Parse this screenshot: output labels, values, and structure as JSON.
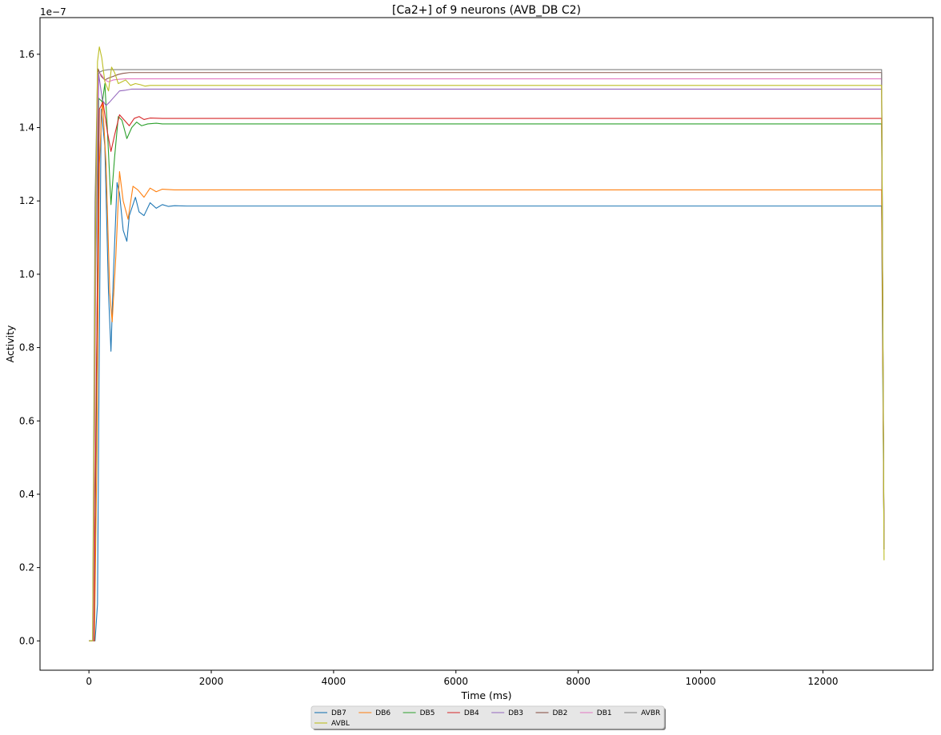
{
  "chart_data": {
    "type": "line",
    "title": "[Ca2+] of 9 neurons (AVB_DB C2)",
    "xlabel": "Time (ms)",
    "ylabel": "Activity",
    "y_offset_label": "1e−7",
    "xlim": [
      -800,
      13800
    ],
    "ylim": [
      -0.08,
      1.7
    ],
    "x_ticks": [
      0,
      2000,
      4000,
      6000,
      8000,
      10000,
      12000
    ],
    "x_tick_labels": [
      "0",
      "2000",
      "4000",
      "6000",
      "8000",
      "10000",
      "12000"
    ],
    "y_ticks": [
      0.0,
      0.2,
      0.4,
      0.6,
      0.8,
      1.0,
      1.2,
      1.4,
      1.6
    ],
    "y_tick_labels": [
      "0.0",
      "0.2",
      "0.4",
      "0.6",
      "0.8",
      "1.0",
      "1.2",
      "1.4",
      "1.6"
    ],
    "grid": false,
    "legend_position": "bottom-center, below axes",
    "series": [
      {
        "name": "DB7",
        "color": "#1f77b4",
        "x": [
          0,
          100,
          140,
          160,
          200,
          260,
          320,
          360,
          400,
          460,
          500,
          560,
          620,
          660,
          760,
          820,
          900,
          1000,
          1100,
          1200,
          1300,
          1400,
          1600,
          12960,
          12980,
          13000
        ],
        "y": [
          0.0,
          0.0,
          0.1,
          0.6,
          1.45,
          1.35,
          0.95,
          0.79,
          1.0,
          1.25,
          1.22,
          1.12,
          1.09,
          1.16,
          1.21,
          1.17,
          1.16,
          1.195,
          1.18,
          1.19,
          1.185,
          1.187,
          1.186,
          1.186,
          0.7,
          0.25
        ]
      },
      {
        "name": "DB6",
        "color": "#ff7f0e",
        "x": [
          0,
          90,
          130,
          170,
          220,
          280,
          340,
          380,
          440,
          500,
          560,
          640,
          720,
          800,
          900,
          1000,
          1100,
          1200,
          1400,
          12960,
          12980,
          13000
        ],
        "y": [
          0.0,
          0.0,
          0.5,
          1.3,
          1.48,
          1.3,
          0.95,
          0.87,
          1.05,
          1.28,
          1.2,
          1.15,
          1.24,
          1.23,
          1.21,
          1.235,
          1.225,
          1.232,
          1.23,
          1.23,
          0.75,
          0.25
        ]
      },
      {
        "name": "DB5",
        "color": "#2ca02c",
        "x": [
          0,
          80,
          120,
          160,
          220,
          260,
          300,
          360,
          420,
          480,
          540,
          620,
          700,
          780,
          860,
          960,
          1100,
          1200,
          12960,
          12980,
          13000
        ],
        "y": [
          0.0,
          0.0,
          0.6,
          1.48,
          1.47,
          1.52,
          1.4,
          1.19,
          1.32,
          1.43,
          1.42,
          1.37,
          1.4,
          1.415,
          1.405,
          1.41,
          1.412,
          1.41,
          1.41,
          0.8,
          0.25
        ]
      },
      {
        "name": "DB4",
        "color": "#d62728",
        "x": [
          0,
          80,
          120,
          170,
          230,
          300,
          360,
          420,
          500,
          580,
          660,
          740,
          820,
          900,
          1000,
          1200,
          12960,
          12980,
          13000
        ],
        "y": [
          0.0,
          0.0,
          0.7,
          1.45,
          1.47,
          1.39,
          1.335,
          1.38,
          1.435,
          1.42,
          1.405,
          1.425,
          1.43,
          1.422,
          1.426,
          1.425,
          1.425,
          0.8,
          0.25
        ]
      },
      {
        "name": "DB3",
        "color": "#9467bd",
        "x": [
          0,
          70,
          110,
          160,
          220,
          280,
          340,
          420,
          500,
          600,
          700,
          800,
          1000,
          12960,
          12980,
          13000
        ],
        "y": [
          0.0,
          0.0,
          1.0,
          1.545,
          1.475,
          1.46,
          1.47,
          1.485,
          1.5,
          1.502,
          1.505,
          1.505,
          1.505,
          1.505,
          0.85,
          0.25
        ]
      },
      {
        "name": "DB2",
        "color": "#8c564b",
        "x": [
          0,
          70,
          110,
          150,
          200,
          260,
          320,
          400,
          480,
          560,
          660,
          760,
          900,
          12960,
          12980,
          13000
        ],
        "y": [
          0.0,
          0.0,
          1.1,
          1.56,
          1.54,
          1.53,
          1.535,
          1.54,
          1.545,
          1.548,
          1.55,
          1.55,
          1.55,
          1.55,
          0.85,
          0.25
        ]
      },
      {
        "name": "DB1",
        "color": "#e377c2",
        "x": [
          0,
          70,
          110,
          150,
          200,
          260,
          320,
          400,
          500,
          600,
          800,
          12960,
          12980,
          13000
        ],
        "y": [
          0.0,
          0.0,
          1.1,
          1.55,
          1.545,
          1.53,
          1.525,
          1.53,
          1.532,
          1.533,
          1.533,
          1.533,
          0.85,
          0.25
        ]
      },
      {
        "name": "AVBR",
        "color": "#7f7f7f",
        "x": [
          0,
          60,
          100,
          140,
          180,
          240,
          320,
          420,
          600,
          12960,
          12980,
          13000
        ],
        "y": [
          0.0,
          0.0,
          1.2,
          1.545,
          1.552,
          1.556,
          1.558,
          1.558,
          1.558,
          1.558,
          0.9,
          0.25
        ]
      },
      {
        "name": "AVBL",
        "color": "#bcbd22",
        "x": [
          0,
          60,
          100,
          140,
          170,
          210,
          260,
          320,
          370,
          420,
          480,
          540,
          600,
          680,
          760,
          840,
          920,
          1000,
          1100,
          12960,
          12980,
          13000
        ],
        "y": [
          0.0,
          0.0,
          1.0,
          1.58,
          1.62,
          1.59,
          1.525,
          1.5,
          1.565,
          1.55,
          1.52,
          1.525,
          1.53,
          1.515,
          1.52,
          1.517,
          1.513,
          1.515,
          1.515,
          1.515,
          0.85,
          0.22
        ]
      }
    ]
  }
}
